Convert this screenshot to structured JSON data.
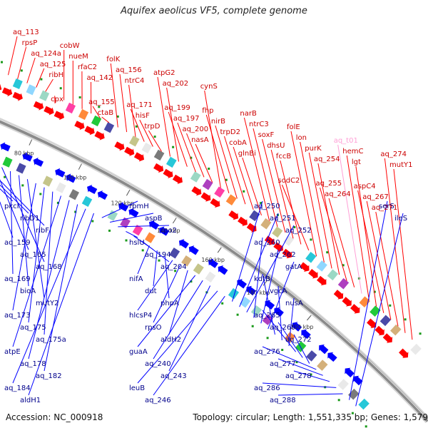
{
  "title": "Aquifex aeolicus VF5, complete genome",
  "footer": {
    "accession": "Accession: NC_000918",
    "summary": "Topology: circular; Length: 1,551,335 bp; Genes: 1,579"
  },
  "colors": {
    "forward": "#ff0000",
    "reverse": "#0000ff",
    "ruler": "#8a8a8a",
    "special_label": "#ff9fd6"
  },
  "kbp_ticks": [
    "80 kbp",
    "100 kbp",
    "120 kbp",
    "140 kbp",
    "160 kbp",
    "180 kbp",
    "200 kbp"
  ],
  "forward_genes": [
    "aq_113",
    "rpsP",
    "aq_124a",
    "aq_125",
    "ribH",
    "cpx",
    "cobW",
    "nueM",
    "rfaC2",
    "aq_142",
    "aq_155",
    "ctaB",
    "folK",
    "aq_156",
    "ntrC4",
    "aq_171",
    "hisF",
    "trpD",
    "atpG2",
    "aq_202",
    "aq_199",
    "aq_197",
    "aq_200",
    "nasA",
    "cynS",
    "fhp",
    "nirB",
    "trpD2",
    "cobA",
    "glnBi",
    "narB",
    "ntrC3",
    "soxF",
    "dhsU",
    "fccB",
    "sodC2",
    "folE",
    "lon",
    "purK",
    "aq_254",
    "aq_255",
    "aq_264",
    "aq_t01",
    "hemC",
    "lgt",
    "aspC4",
    "aq_267",
    "aq_271",
    "aq_274",
    "mutY1"
  ],
  "special_genes": [
    "aq_t01"
  ],
  "reverse_genes": [
    "pkcI",
    "ribD1",
    "ribF",
    "aq_159",
    "aq_165",
    "aq_168",
    "aq_169",
    "bioA",
    "mutY2",
    "aq_173",
    "aq_175",
    "aq_175a",
    "atpE",
    "aq_178",
    "aq_182",
    "aq_184",
    "aldH1",
    "rpmH",
    "aspB",
    "rpo2",
    "hslU",
    "aq_194",
    "aq_204",
    "nifA",
    "dut",
    "phpA",
    "hlcsP4",
    "rpsO",
    "aldH2",
    "guaA",
    "aq_240",
    "aq_243",
    "leuB",
    "aq_246",
    "aq_250",
    "aq_251",
    "aq_252",
    "aq_260",
    "aq_262",
    "gatA",
    "kdtB",
    "vgcA",
    "nusA",
    "aq_265",
    "aq_269",
    "aq_272",
    "aq_276",
    "aq_277",
    "aq_278",
    "aq_286",
    "aq_288",
    "serS",
    "ileS"
  ]
}
